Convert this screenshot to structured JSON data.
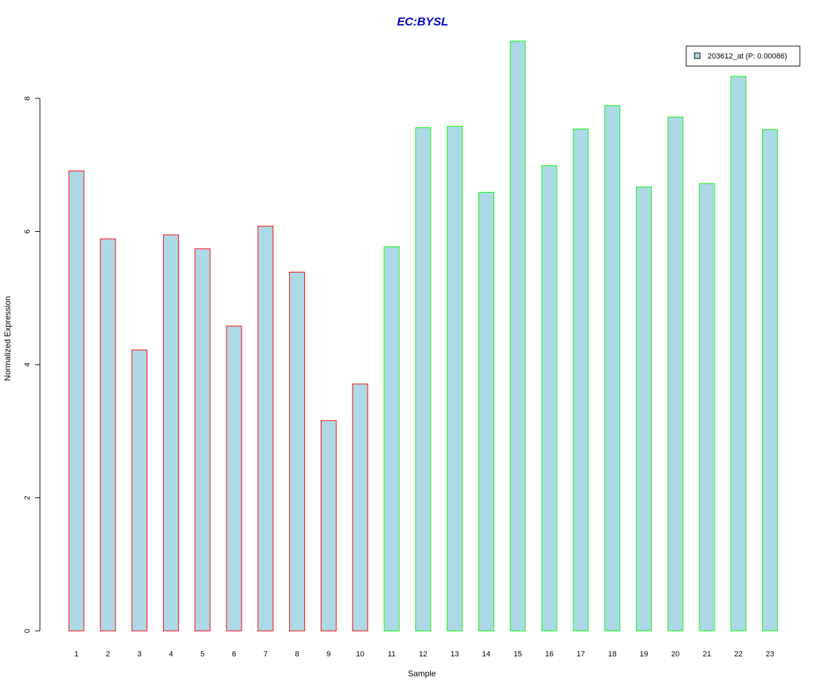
{
  "chart_data": {
    "type": "bar",
    "title": "EC:BYSL",
    "title_color": "#0000CC",
    "xlabel": "Sample",
    "ylabel": "Normalized Expression",
    "categories": [
      "1",
      "2",
      "3",
      "4",
      "5",
      "6",
      "7",
      "8",
      "9",
      "10",
      "11",
      "12",
      "13",
      "14",
      "15",
      "16",
      "17",
      "18",
      "19",
      "20",
      "21",
      "22",
      "23"
    ],
    "values": [
      6.91,
      5.89,
      4.22,
      5.95,
      5.74,
      4.58,
      6.08,
      5.39,
      3.16,
      3.71,
      5.77,
      7.56,
      7.58,
      6.59,
      8.86,
      6.99,
      7.54,
      7.89,
      6.67,
      7.72,
      6.72,
      8.33,
      7.53
    ],
    "groups": [
      "red",
      "red",
      "red",
      "red",
      "red",
      "red",
      "red",
      "red",
      "red",
      "red",
      "green",
      "green",
      "green",
      "green",
      "green",
      "green",
      "green",
      "green",
      "green",
      "green",
      "green",
      "green",
      "green"
    ],
    "group_colors": {
      "red": "#FF0000",
      "green": "#00FF00"
    },
    "bar_fill": "#ADD8E6",
    "ylim": [
      0,
      9
    ],
    "yticks": [
      0,
      2,
      4,
      6,
      8
    ],
    "grid": false,
    "legend": {
      "position": "top-right",
      "entries": [
        {
          "label": "203612_at (P: 0.00086)",
          "color": "#ADD8E6"
        }
      ]
    }
  }
}
